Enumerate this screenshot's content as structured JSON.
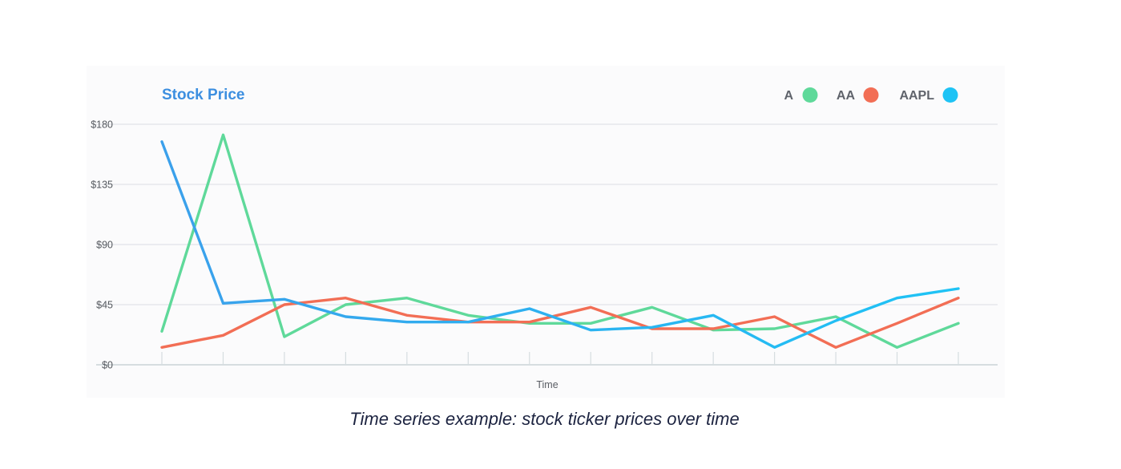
{
  "chart_data": {
    "type": "line",
    "title": "Stock Price",
    "xlabel": "Time",
    "ylabel": "",
    "ylim": [
      0,
      180
    ],
    "yticks": [
      0,
      45,
      90,
      135,
      180
    ],
    "ytick_labels": [
      "$0",
      "$45",
      "$90",
      "$135",
      "$180"
    ],
    "x": [
      1,
      2,
      3,
      4,
      5,
      6,
      7,
      8,
      9,
      10,
      11,
      12,
      13,
      14
    ],
    "grid": true,
    "legend_position": "top-right",
    "series": [
      {
        "name": "A",
        "color": "#5fd99a",
        "values": [
          25,
          172,
          21,
          45,
          50,
          37,
          31,
          31,
          43,
          26,
          27,
          36,
          13,
          31
        ]
      },
      {
        "name": "AA",
        "color": "#f26e55",
        "values": [
          13,
          22,
          45,
          50,
          37,
          32,
          32,
          43,
          27,
          27,
          36,
          13,
          31,
          50
        ]
      },
      {
        "name": "AAPL",
        "color": "#3ba0eb",
        "color_end": "#1ec3f5",
        "values": [
          167,
          46,
          49,
          36,
          32,
          32,
          42,
          26,
          28,
          37,
          13,
          33,
          50,
          57
        ]
      }
    ]
  },
  "caption": "Time series example: stock ticker prices over time"
}
